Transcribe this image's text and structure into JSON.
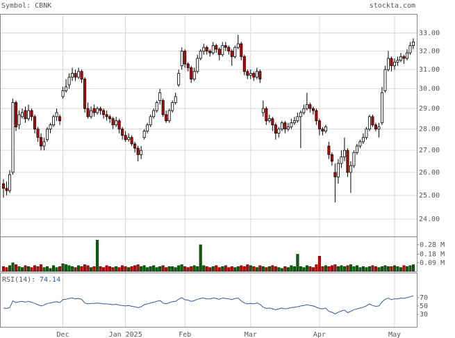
{
  "chart_data": {
    "type": "candlestick",
    "symbol_label": "Symbol: CBNK",
    "source": "stockta.com",
    "log_scale": true,
    "grid": true,
    "up_color": "#ffffff",
    "down_color": "#cc0000",
    "ylim": [
      23.3,
      34.1
    ],
    "yticks": [
      {
        "value": 33,
        "label": "33.00"
      },
      {
        "value": 32,
        "label": "32.00"
      },
      {
        "value": 31,
        "label": "31.00"
      },
      {
        "value": 30,
        "label": "30.00"
      },
      {
        "value": 29,
        "label": "29.00"
      },
      {
        "value": 28,
        "label": "28.00"
      },
      {
        "value": 27,
        "label": "27.00"
      },
      {
        "value": 26,
        "label": "26.00"
      },
      {
        "value": 25,
        "label": "25.00"
      },
      {
        "value": 24,
        "label": "24.00"
      }
    ],
    "xticks": [
      {
        "value": 19,
        "label": "Dec"
      },
      {
        "value": 39,
        "label": "Jan 2025"
      },
      {
        "value": 58,
        "label": "Feb"
      },
      {
        "value": 79,
        "label": "Mar"
      },
      {
        "value": 101,
        "label": "Apr"
      },
      {
        "value": 125,
        "label": "May"
      }
    ],
    "ohlc": [
      [
        25.5,
        25.7,
        24.9,
        25.3
      ],
      [
        25.3,
        25.6,
        25.0,
        25.2
      ],
      [
        25.2,
        26.1,
        25.1,
        25.9
      ],
      [
        26.0,
        29.5,
        25.9,
        29.3
      ],
      [
        29.3,
        29.4,
        27.9,
        28.1
      ],
      [
        28.2,
        28.9,
        28.0,
        28.7
      ],
      [
        28.6,
        29.0,
        28.5,
        28.8
      ],
      [
        28.9,
        29.1,
        28.3,
        28.5
      ],
      [
        28.5,
        29.2,
        28.4,
        28.9
      ],
      [
        28.9,
        29.0,
        28.4,
        28.6
      ],
      [
        28.6,
        28.7,
        27.8,
        28.0
      ],
      [
        28.0,
        28.1,
        27.4,
        27.6
      ],
      [
        27.6,
        27.8,
        27.0,
        27.2
      ],
      [
        27.2,
        27.6,
        27.0,
        27.4
      ],
      [
        27.5,
        28.1,
        27.4,
        28.0
      ],
      [
        28.0,
        28.3,
        27.8,
        28.2
      ],
      [
        28.2,
        28.7,
        28.1,
        28.6
      ],
      [
        28.6,
        29.0,
        28.4,
        28.8
      ],
      [
        28.6,
        28.7,
        28.2,
        28.4
      ],
      [
        29.6,
        30.1,
        29.5,
        29.9
      ],
      [
        29.9,
        30.5,
        29.8,
        30.1
      ],
      [
        30.2,
        30.8,
        30.0,
        30.6
      ],
      [
        30.6,
        31.1,
        30.4,
        30.8
      ],
      [
        30.8,
        31.0,
        30.4,
        30.6
      ],
      [
        30.6,
        31.1,
        30.5,
        30.9
      ],
      [
        30.9,
        31.0,
        30.3,
        30.5
      ],
      [
        30.5,
        30.6,
        28.8,
        29.0
      ],
      [
        29.0,
        29.3,
        28.5,
        28.6
      ],
      [
        28.6,
        29.1,
        28.5,
        28.9
      ],
      [
        29.0,
        29.2,
        28.6,
        28.8
      ],
      [
        28.8,
        29.1,
        28.7,
        29.0
      ],
      [
        29.0,
        29.1,
        28.7,
        28.9
      ],
      [
        28.9,
        29.0,
        28.5,
        28.7
      ],
      [
        28.7,
        28.9,
        28.4,
        28.6
      ],
      [
        28.6,
        28.7,
        28.3,
        28.5
      ],
      [
        28.5,
        28.6,
        28.0,
        28.2
      ],
      [
        28.2,
        28.6,
        28.1,
        28.4
      ],
      [
        28.4,
        28.5,
        27.8,
        28.0
      ],
      [
        28.0,
        28.1,
        27.5,
        27.7
      ],
      [
        27.7,
        27.9,
        27.4,
        27.5
      ],
      [
        27.5,
        27.8,
        27.4,
        27.6
      ],
      [
        27.6,
        27.7,
        27.2,
        27.3
      ],
      [
        27.3,
        27.4,
        26.9,
        27.1
      ],
      [
        27.1,
        27.2,
        26.5,
        26.8
      ],
      [
        26.8,
        27.2,
        26.6,
        27.0
      ],
      [
        27.6,
        28.0,
        27.5,
        27.9
      ],
      [
        27.9,
        28.3,
        27.8,
        28.2
      ],
      [
        28.2,
        28.7,
        28.1,
        28.6
      ],
      [
        28.6,
        29.0,
        28.5,
        28.9
      ],
      [
        28.9,
        29.4,
        28.8,
        29.3
      ],
      [
        29.4,
        30.0,
        29.2,
        29.8
      ],
      [
        29.4,
        29.5,
        28.6,
        28.7
      ],
      [
        28.7,
        28.9,
        28.3,
        28.4
      ],
      [
        28.4,
        29.0,
        28.3,
        28.9
      ],
      [
        28.9,
        29.4,
        28.8,
        29.3
      ],
      [
        29.3,
        29.8,
        29.2,
        29.6
      ],
      [
        30.2,
        31.0,
        30.1,
        30.8
      ],
      [
        31.2,
        32.2,
        31.0,
        32.0
      ],
      [
        32.0,
        32.1,
        31.1,
        31.3
      ],
      [
        31.3,
        31.4,
        30.9,
        31.1
      ],
      [
        31.1,
        31.2,
        30.3,
        30.5
      ],
      [
        30.5,
        31.1,
        30.4,
        30.9
      ],
      [
        30.9,
        31.8,
        30.8,
        31.6
      ],
      [
        31.6,
        32.1,
        31.5,
        32.0
      ],
      [
        32.0,
        32.4,
        31.8,
        32.2
      ],
      [
        32.2,
        32.3,
        31.8,
        32.0
      ],
      [
        32.0,
        32.1,
        31.7,
        31.9
      ],
      [
        31.9,
        32.5,
        31.8,
        32.3
      ],
      [
        32.3,
        32.4,
        31.9,
        32.1
      ],
      [
        32.1,
        32.2,
        31.5,
        31.8
      ],
      [
        31.8,
        32.5,
        31.7,
        32.3
      ],
      [
        32.3,
        32.5,
        32.0,
        32.2
      ],
      [
        32.2,
        32.3,
        31.8,
        32.0
      ],
      [
        32.0,
        32.1,
        31.2,
        31.7
      ],
      [
        31.7,
        32.3,
        31.6,
        32.2
      ],
      [
        32.2,
        32.9,
        32.1,
        32.4
      ],
      [
        32.4,
        32.5,
        31.5,
        31.7
      ],
      [
        31.7,
        31.8,
        30.7,
        30.9
      ],
      [
        30.9,
        31.0,
        30.5,
        30.7
      ],
      [
        30.7,
        31.0,
        30.5,
        30.8
      ],
      [
        30.8,
        30.9,
        30.4,
        30.6
      ],
      [
        30.6,
        31.1,
        30.5,
        30.9
      ],
      [
        30.9,
        31.0,
        30.3,
        30.5
      ],
      [
        28.8,
        29.4,
        28.6,
        29.0
      ],
      [
        29.0,
        29.1,
        28.2,
        28.4
      ],
      [
        28.4,
        28.7,
        28.3,
        28.5
      ],
      [
        28.5,
        28.6,
        27.9,
        28.2
      ],
      [
        28.2,
        28.3,
        27.5,
        27.8
      ],
      [
        27.8,
        28.1,
        27.6,
        28.0
      ],
      [
        28.0,
        28.4,
        27.9,
        28.3
      ],
      [
        28.3,
        28.4,
        27.8,
        28.0
      ],
      [
        28.0,
        28.3,
        27.9,
        28.1
      ],
      [
        28.1,
        28.5,
        28.0,
        28.3
      ],
      [
        28.3,
        28.6,
        28.2,
        28.4
      ],
      [
        28.4,
        28.8,
        28.3,
        28.6
      ],
      [
        28.6,
        28.9,
        27.1,
        28.8
      ],
      [
        28.8,
        29.2,
        28.7,
        29.0
      ],
      [
        29.0,
        29.8,
        28.9,
        29.2
      ],
      [
        29.2,
        29.3,
        28.8,
        29.0
      ],
      [
        29.0,
        29.1,
        28.7,
        28.9
      ],
      [
        28.9,
        29.0,
        28.2,
        28.4
      ],
      [
        28.4,
        28.5,
        27.7,
        28.0
      ],
      [
        28.0,
        28.1,
        27.7,
        27.9
      ],
      [
        27.9,
        28.2,
        27.8,
        28.1
      ],
      [
        27.2,
        27.4,
        26.6,
        26.8
      ],
      [
        26.8,
        26.9,
        26.3,
        26.5
      ],
      [
        26.0,
        26.4,
        24.7,
        25.8
      ],
      [
        25.8,
        26.6,
        25.5,
        26.4
      ],
      [
        26.4,
        27.0,
        26.2,
        26.7
      ],
      [
        26.7,
        27.6,
        26.5,
        27.0
      ],
      [
        27.0,
        27.1,
        25.8,
        26.0
      ],
      [
        26.0,
        26.5,
        25.1,
        26.3
      ],
      [
        26.3,
        27.0,
        26.2,
        26.9
      ],
      [
        26.9,
        27.3,
        26.8,
        27.2
      ],
      [
        27.2,
        27.5,
        27.1,
        27.4
      ],
      [
        27.4,
        27.8,
        27.3,
        27.6
      ],
      [
        27.6,
        28.1,
        27.5,
        28.0
      ],
      [
        28.0,
        28.7,
        27.9,
        28.6
      ],
      [
        28.6,
        28.7,
        28.1,
        28.2
      ],
      [
        28.2,
        28.3,
        27.9,
        28.0
      ],
      [
        28.0,
        28.3,
        27.6,
        28.1
      ],
      [
        28.3,
        30.1,
        28.2,
        29.8
      ],
      [
        29.9,
        31.2,
        29.8,
        31.0
      ],
      [
        31.0,
        32.0,
        30.9,
        31.6
      ],
      [
        31.6,
        31.7,
        30.9,
        31.2
      ],
      [
        31.2,
        31.6,
        31.0,
        31.4
      ],
      [
        31.4,
        31.7,
        31.2,
        31.5
      ],
      [
        31.5,
        31.9,
        31.4,
        31.7
      ],
      [
        31.7,
        31.8,
        31.3,
        31.6
      ],
      [
        31.6,
        32.1,
        31.5,
        31.9
      ],
      [
        31.9,
        32.5,
        31.8,
        32.3
      ],
      [
        32.3,
        32.7,
        32.1,
        32.5
      ]
    ],
    "volume": {
      "up_color": "#006600",
      "down_color": "#cc0000",
      "ylim": [
        0,
        0.36
      ],
      "yticks": [
        {
          "value": 0.28,
          "label": "0.28 M"
        },
        {
          "value": 0.18,
          "label": "0.18 M"
        },
        {
          "value": 0.09,
          "label": "0.09 M"
        }
      ],
      "values": [
        0.05,
        0.04,
        0.06,
        0.09,
        0.07,
        0.05,
        0.04,
        0.06,
        0.05,
        0.04,
        0.06,
        0.05,
        0.07,
        0.04,
        0.05,
        0.03,
        0.06,
        0.04,
        0.05,
        0.08,
        0.07,
        0.06,
        0.05,
        0.04,
        0.06,
        0.05,
        0.07,
        0.06,
        0.04,
        0.05,
        0.33,
        0.05,
        0.04,
        0.06,
        0.05,
        0.04,
        0.05,
        0.04,
        0.06,
        0.05,
        0.04,
        0.05,
        0.06,
        0.07,
        0.05,
        0.06,
        0.04,
        0.05,
        0.06,
        0.04,
        0.05,
        0.06,
        0.04,
        0.05,
        0.05,
        0.04,
        0.06,
        0.07,
        0.05,
        0.04,
        0.05,
        0.06,
        0.05,
        0.28,
        0.06,
        0.05,
        0.04,
        0.05,
        0.06,
        0.04,
        0.05,
        0.06,
        0.04,
        0.05,
        0.04,
        0.05,
        0.06,
        0.05,
        0.07,
        0.06,
        0.05,
        0.04,
        0.06,
        0.05,
        0.04,
        0.05,
        0.06,
        0.05,
        0.04,
        0.03,
        0.05,
        0.04,
        0.06,
        0.05,
        0.18,
        0.05,
        0.04,
        0.06,
        0.05,
        0.04,
        0.07,
        0.16,
        0.05,
        0.06,
        0.05,
        0.06,
        0.07,
        0.05,
        0.06,
        0.05,
        0.06,
        0.07,
        0.05,
        0.06,
        0.04,
        0.05,
        0.04,
        0.05,
        0.06,
        0.05,
        0.04,
        0.05,
        0.06,
        0.05,
        0.05,
        0.06,
        0.05,
        0.04,
        0.06,
        0.05,
        0.06,
        0.07
      ]
    },
    "rsi": {
      "label": "RSI(14):",
      "current": 74.14,
      "color": "#3355aa",
      "ylim": [
        0,
        128
      ],
      "yticks": [
        70,
        50,
        30
      ],
      "values": [
        45,
        44,
        46,
        62,
        58,
        60,
        61,
        59,
        61,
        59,
        56,
        53,
        50,
        52,
        56,
        57,
        59,
        60,
        58,
        65,
        66,
        68,
        69,
        67,
        68,
        66,
        57,
        55,
        56,
        56,
        57,
        56,
        55,
        55,
        54,
        53,
        54,
        52,
        51,
        50,
        51,
        49,
        48,
        46,
        48,
        53,
        55,
        57,
        59,
        61,
        63,
        57,
        55,
        58,
        60,
        61,
        66,
        70,
        65,
        64,
        61,
        63,
        66,
        68,
        69,
        67,
        67,
        69,
        68,
        66,
        69,
        68,
        67,
        65,
        68,
        69,
        62,
        57,
        55,
        56,
        55,
        57,
        54,
        47,
        44,
        45,
        43,
        41,
        43,
        45,
        43,
        44,
        46,
        47,
        48,
        50,
        51,
        53,
        51,
        50,
        47,
        44,
        43,
        45,
        37,
        35,
        31,
        35,
        38,
        40,
        34,
        37,
        41,
        43,
        45,
        47,
        50,
        55,
        51,
        49,
        50,
        60,
        66,
        69,
        65,
        67,
        67,
        69,
        68,
        70,
        72,
        74.14
      ]
    }
  }
}
